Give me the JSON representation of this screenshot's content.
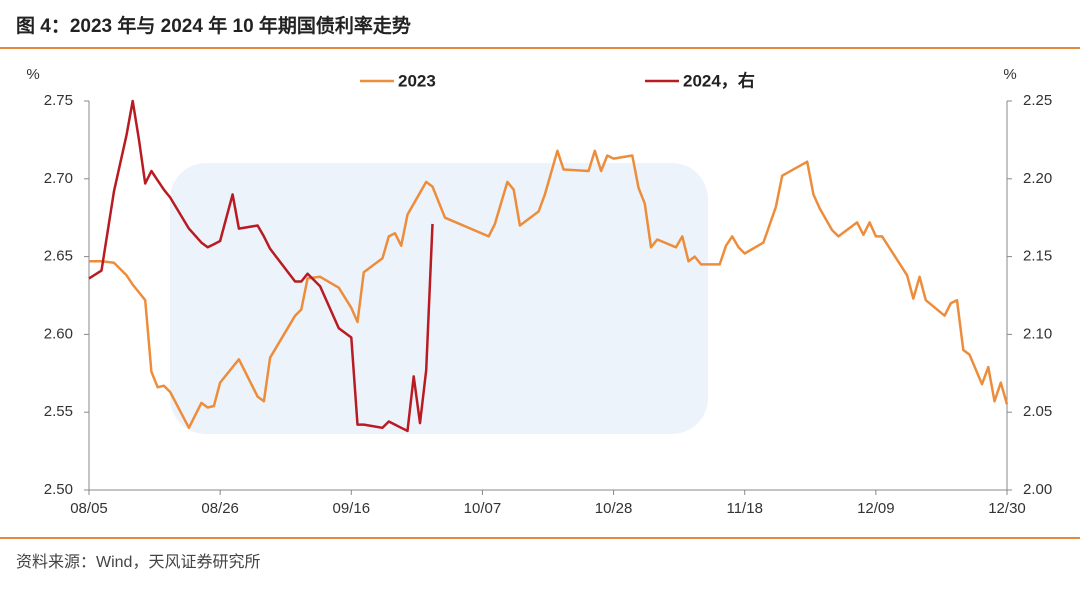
{
  "header": {
    "title": "图 4：2023 年与 2024 年 10 年期国债利率走势"
  },
  "footer": {
    "source": "资料来源：Wind，天风证券研究所"
  },
  "chart_data": {
    "type": "line",
    "y_unit": "%",
    "y2_unit": "%",
    "x": [
      "08/05",
      "08/07",
      "08/09",
      "08/11",
      "08/12",
      "08/13",
      "08/14",
      "08/15",
      "08/16",
      "08/17",
      "08/18",
      "08/21",
      "08/23",
      "08/24",
      "08/25",
      "08/26",
      "08/28",
      "08/29",
      "09/01",
      "09/02",
      "09/03",
      "09/07",
      "09/08",
      "09/09",
      "09/11",
      "09/14",
      "09/16",
      "09/17",
      "09/18",
      "09/21",
      "09/22",
      "09/23",
      "09/24",
      "09/25",
      "09/26",
      "09/27",
      "09/28",
      "09/29",
      "10/01",
      "10/08",
      "10/09",
      "10/11",
      "10/12",
      "10/13",
      "10/16",
      "10/17",
      "10/19",
      "10/20",
      "10/24",
      "10/25",
      "10/26",
      "10/27",
      "10/28",
      "10/31",
      "11/01",
      "11/02",
      "11/03",
      "11/04",
      "11/07",
      "11/08",
      "11/09",
      "11/10",
      "11/11",
      "11/14",
      "11/15",
      "11/16",
      "11/17",
      "11/18",
      "11/21",
      "11/23",
      "11/24",
      "11/28",
      "11/29",
      "11/30",
      "12/02",
      "12/03",
      "12/06",
      "12/07",
      "12/08",
      "12/09",
      "12/10",
      "12/14",
      "12/15",
      "12/16",
      "12/17",
      "12/20",
      "12/21",
      "12/22",
      "12/23",
      "12/24",
      "12/26",
      "12/27",
      "12/28",
      "12/29",
      "12/30"
    ],
    "xticks": [
      "08/05",
      "08/26",
      "09/16",
      "10/07",
      "10/28",
      "11/18",
      "12/09",
      "12/30"
    ],
    "series": [
      {
        "name": "2023",
        "color": "#ED8D3C",
        "axis": "y",
        "values": [
          2.647,
          2.647,
          2.646,
          2.638,
          2.632,
          2.627,
          2.622,
          2.576,
          2.566,
          2.567,
          2.563,
          2.54,
          2.556,
          2.553,
          2.554,
          2.569,
          2.579,
          2.584,
          2.56,
          2.557,
          2.585,
          2.612,
          2.616,
          2.636,
          2.637,
          2.63,
          2.617,
          2.608,
          2.64,
          2.649,
          2.663,
          2.665,
          2.657,
          2.677,
          2.684,
          2.691,
          2.698,
          2.695,
          2.675,
          2.663,
          2.671,
          2.698,
          2.693,
          2.67,
          2.679,
          2.69,
          2.718,
          2.706,
          2.705,
          2.718,
          2.705,
          2.715,
          2.713,
          2.715,
          2.694,
          2.684,
          2.656,
          2.661,
          2.656,
          2.663,
          2.647,
          2.65,
          2.645,
          2.645,
          2.657,
          2.663,
          2.656,
          2.652,
          2.659,
          2.682,
          2.702,
          2.711,
          2.69,
          2.681,
          2.667,
          2.663,
          2.672,
          2.664,
          2.672,
          2.663,
          2.663,
          2.638,
          2.623,
          2.637,
          2.622,
          2.612,
          2.62,
          2.622,
          2.59,
          2.587,
          2.568,
          2.579,
          2.557,
          2.569,
          2.555
        ]
      },
      {
        "name": "2024，右",
        "color": "#B81C22",
        "axis": "y2",
        "values": [
          2.136,
          2.141,
          2.192,
          2.228,
          2.25,
          2.225,
          2.197,
          2.205,
          2.199,
          2.193,
          2.188,
          2.168,
          2.159,
          2.156,
          2.158,
          2.16,
          2.19,
          2.168,
          2.17,
          2.163,
          2.155,
          2.134,
          2.134,
          2.139,
          2.131,
          2.104,
          2.098,
          2.042,
          2.042,
          2.04,
          2.044,
          2.042,
          2.04,
          2.038,
          2.073,
          2.043,
          2.077,
          2.171,
          null,
          null,
          null,
          null,
          null,
          null,
          null,
          null,
          null,
          null,
          null,
          null,
          null,
          null,
          null,
          null,
          null,
          null,
          null,
          null,
          null,
          null,
          null,
          null,
          null,
          null,
          null,
          null,
          null,
          null,
          null,
          null,
          null,
          null,
          null,
          null,
          null,
          null,
          null,
          null,
          null,
          null,
          null,
          null,
          null,
          null,
          null,
          null,
          null,
          null,
          null,
          null,
          null,
          null,
          null,
          null,
          null
        ]
      }
    ],
    "ylim": [
      2.5,
      2.75
    ],
    "yticks": [
      {
        "value": 2.5,
        "label": "2.50"
      },
      {
        "value": 2.55,
        "label": "2.55"
      },
      {
        "value": 2.6,
        "label": "2.60"
      },
      {
        "value": 2.65,
        "label": "2.65"
      },
      {
        "value": 2.7,
        "label": "2.70"
      },
      {
        "value": 2.75,
        "label": "2.75"
      }
    ],
    "y2lim": [
      2.0,
      2.25
    ],
    "y2ticks": [
      {
        "value": 2.0,
        "label": "2.00"
      },
      {
        "value": 2.05,
        "label": "2.05"
      },
      {
        "value": 2.1,
        "label": "2.10"
      },
      {
        "value": 2.15,
        "label": "2.15"
      },
      {
        "value": 2.2,
        "label": "2.20"
      },
      {
        "value": 2.25,
        "label": "2.25"
      }
    ],
    "grid": false,
    "legend": "top"
  }
}
